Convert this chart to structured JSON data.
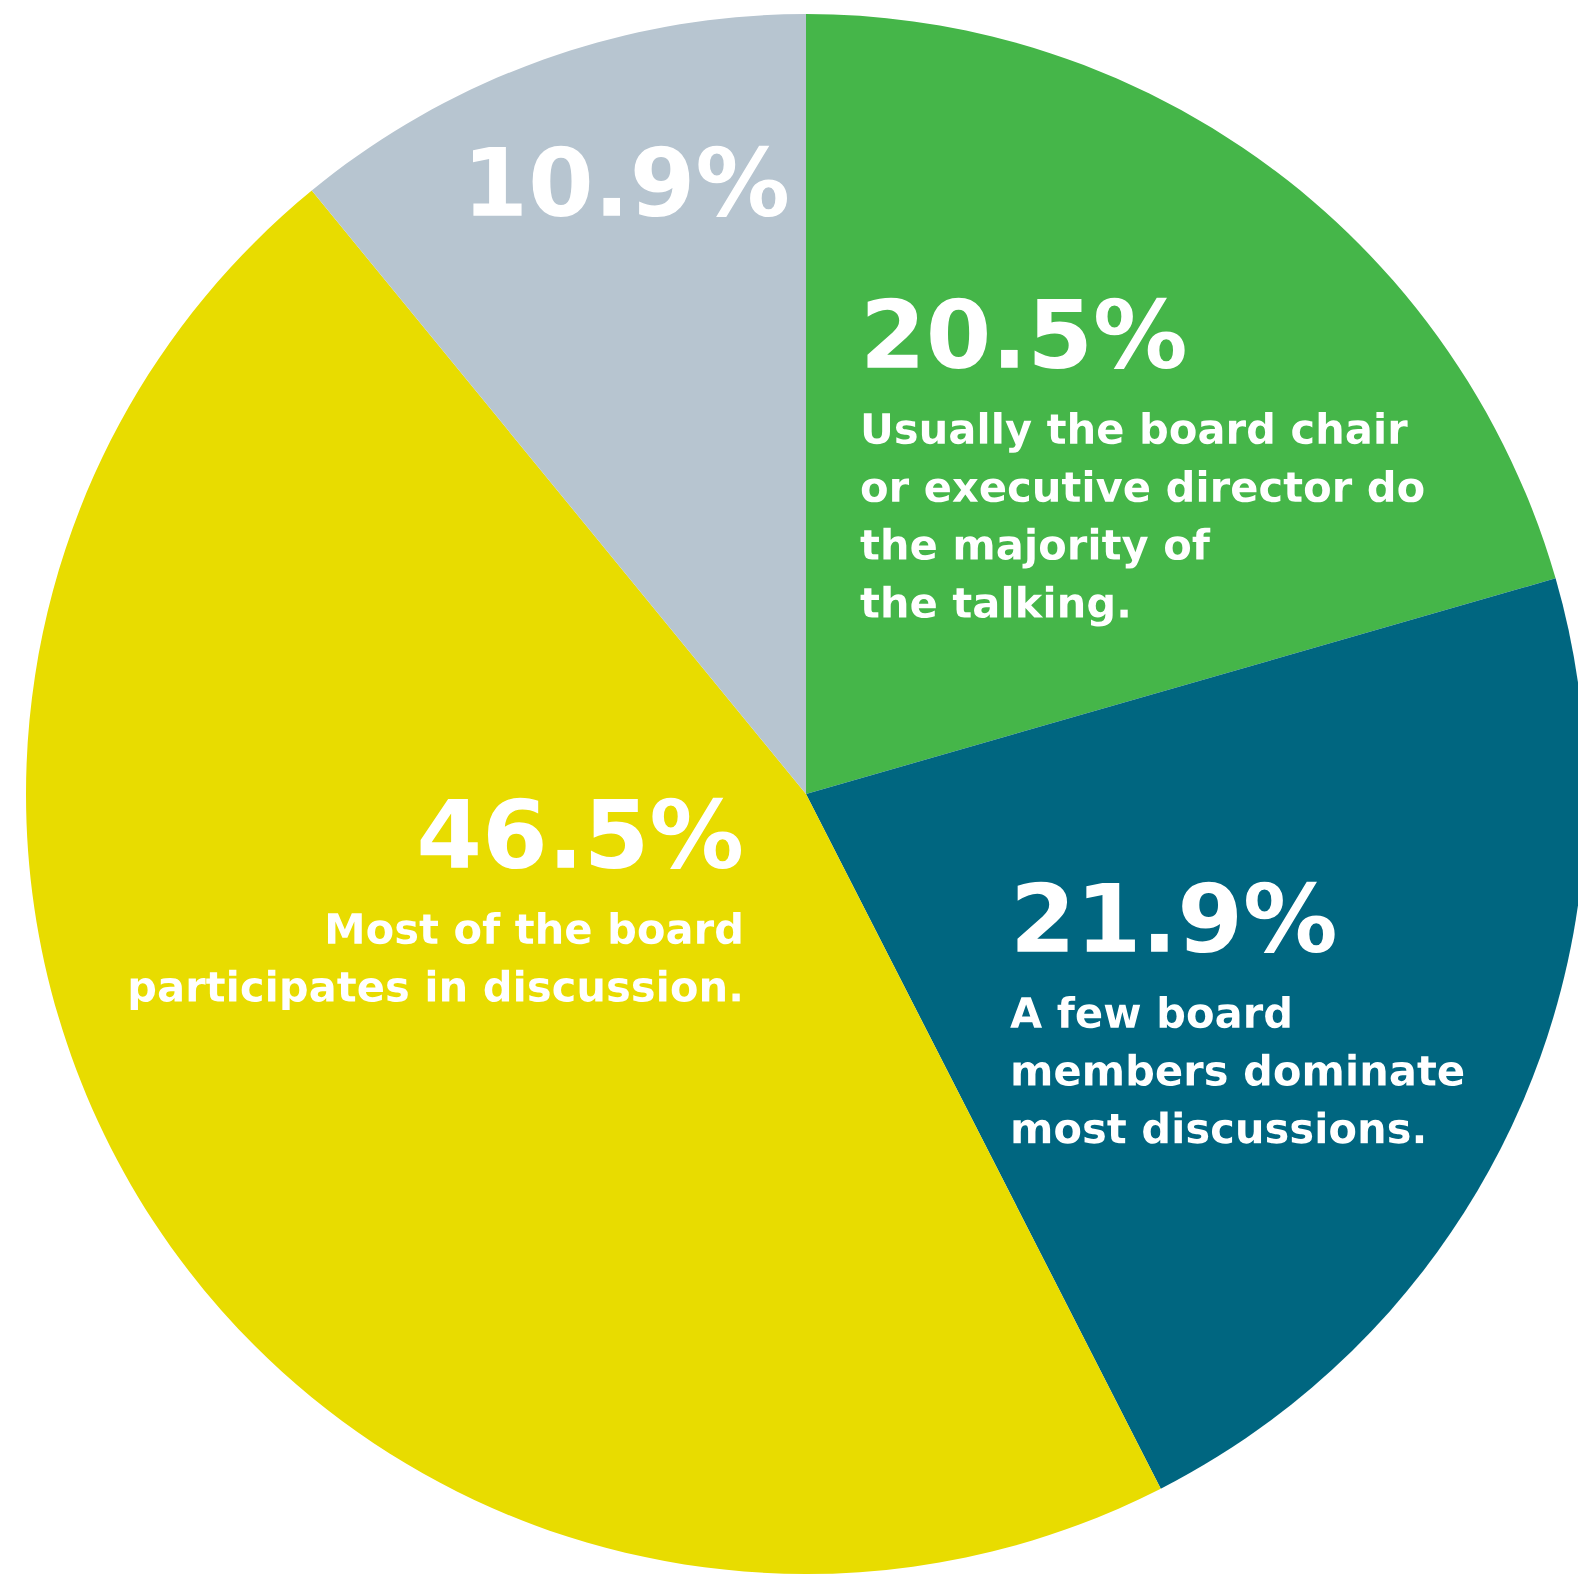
{
  "chart_data": {
    "type": "pie",
    "categories": [
      "Usually the board chair\nor executive director do\nthe majority of\nthe talking.",
      "A few board\nmembers dominate\nmost discussions.",
      "Most of the board\nparticipates in discussion.",
      null
    ],
    "values": [
      20.5,
      21.9,
      46.5,
      10.9
    ],
    "value_labels": [
      "20.5%",
      "21.9%",
      "46.5%",
      "10.9%"
    ],
    "colors": [
      "#45b649",
      "#006680",
      "#e8dc00",
      "#b7c5d0"
    ]
  }
}
